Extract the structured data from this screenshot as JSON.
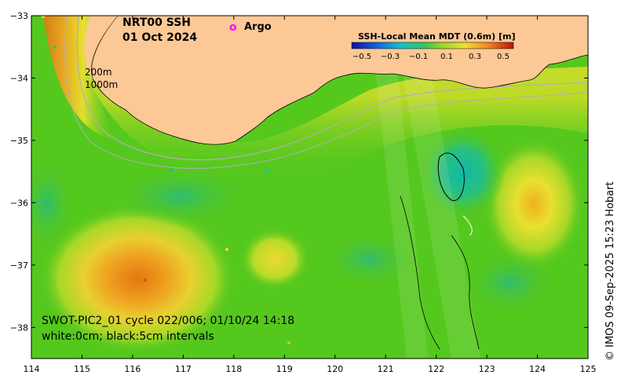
{
  "map": {
    "title_line1": "NRT00 SSH",
    "title_line2": "01 Oct 2024",
    "argo_marker": "o",
    "argo_label": "Argo",
    "argo_color": "#ff00ff",
    "contour_label_200": "200m",
    "contour_label_1000": "1000m",
    "caption_line1": "SWOT-PIC2_01 cycle 022/006; 01/10/24 14:18",
    "caption_line2": "white:0cm; black:5cm intervals",
    "credit": "© IMOS 09-Sep-2025 15:23 Hobart",
    "land_color": "#fcc896",
    "ocean_base_color": "#55c81e"
  },
  "colorbar": {
    "title": "SSH-Local Mean MDT (0.6m) [m]",
    "ticks": [
      "−0.5",
      "−0.3",
      "−0.1",
      "0.1",
      "0.3",
      "0.5"
    ]
  },
  "axes": {
    "x_ticks": [
      "114",
      "115",
      "116",
      "117",
      "118",
      "119",
      "120",
      "121",
      "122",
      "123",
      "124",
      "125"
    ],
    "y_ticks": [
      "−33",
      "−34",
      "−35",
      "−36",
      "−37",
      "−38"
    ],
    "xlim": [
      114,
      125
    ],
    "ylim": [
      -38.5,
      -33
    ]
  }
}
